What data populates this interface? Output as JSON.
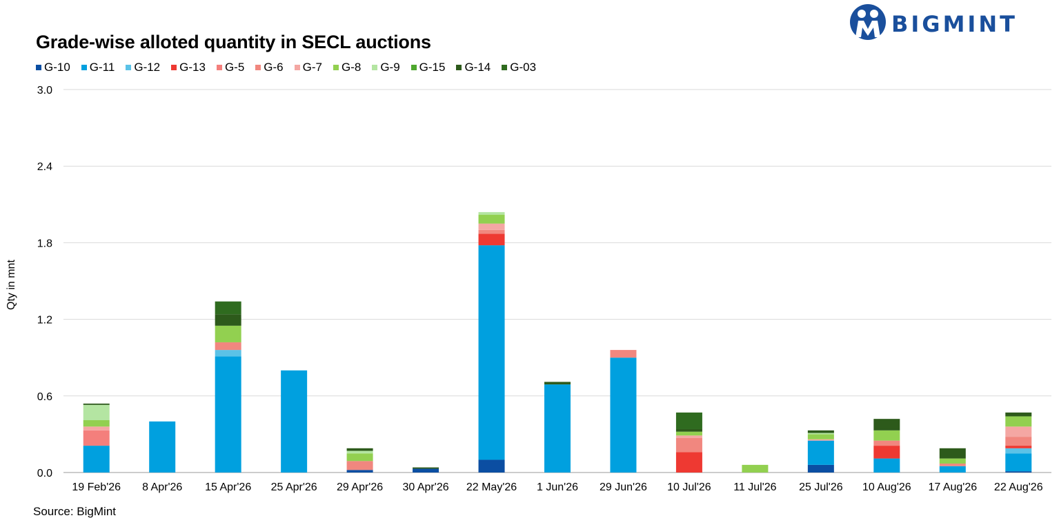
{
  "brand": {
    "name": "BIGMINT",
    "color": "#1a4f9c"
  },
  "source": "Source: BigMint",
  "chart_data": {
    "type": "bar",
    "stacked": true,
    "title": "Grade-wise alloted quantity in SECL auctions",
    "xlabel": "",
    "ylabel": "Qty in mnt",
    "ylim": [
      0,
      3.0
    ],
    "yticks": [
      "0.0",
      "0.6",
      "1.2",
      "1.8",
      "2.4",
      "3.0"
    ],
    "grid": true,
    "legend_position": "top-left",
    "categories": [
      "19 Feb'26",
      "8 Apr'26",
      "15 Apr'26",
      "25 Apr'26",
      "29 Apr'26",
      "30 Apr'26",
      "22 May'26",
      "1 Jun'26",
      "29 Jun'26",
      "10 Jul'26",
      "11 Jul'26",
      "25 Jul'26",
      "10 Aug'26",
      "17 Aug'26",
      "22 Aug'26"
    ],
    "series": [
      {
        "name": "G-10",
        "color": "#0b4ea2",
        "values": [
          0,
          0,
          0,
          0,
          0.02,
          0.03,
          0.1,
          0,
          0,
          0,
          0,
          0.06,
          0,
          0,
          0.01
        ]
      },
      {
        "name": "G-11",
        "color": "#00a0df",
        "values": [
          0.21,
          0.4,
          0.91,
          0.8,
          0,
          0,
          1.68,
          0.69,
          0.9,
          0,
          0,
          0.19,
          0.11,
          0.05,
          0.14
        ]
      },
      {
        "name": "G-12",
        "color": "#5bc2e7",
        "values": [
          0,
          0,
          0.05,
          0,
          0,
          0,
          0,
          0,
          0,
          0,
          0,
          0,
          0,
          0,
          0.04
        ]
      },
      {
        "name": "G-13",
        "color": "#ee3932",
        "values": [
          0,
          0,
          0,
          0,
          0,
          0,
          0.09,
          0,
          0,
          0.16,
          0,
          0,
          0.1,
          0,
          0.02
        ]
      },
      {
        "name": "G-5",
        "color": "#f47f7c",
        "values": [
          0.12,
          0,
          0,
          0,
          0,
          0,
          0,
          0,
          0,
          0,
          0,
          0,
          0,
          0,
          0
        ]
      },
      {
        "name": "G-6",
        "color": "#f1877f",
        "values": [
          0,
          0,
          0.06,
          0,
          0.07,
          0,
          0.03,
          0,
          0.06,
          0.11,
          0,
          0,
          0.04,
          0.02,
          0.07
        ]
      },
      {
        "name": "G-7",
        "color": "#f4a7a3",
        "values": [
          0.03,
          0,
          0,
          0,
          0,
          0,
          0.05,
          0,
          0,
          0.02,
          0,
          0.01,
          0,
          0,
          0.08
        ]
      },
      {
        "name": "G-8",
        "color": "#92d050",
        "values": [
          0.05,
          0,
          0.13,
          0,
          0.06,
          0,
          0.07,
          0,
          0,
          0.03,
          0.06,
          0.04,
          0.08,
          0.04,
          0.08
        ]
      },
      {
        "name": "G-9",
        "color": "#b4e5a2",
        "values": [
          0.12,
          0,
          0,
          0,
          0.02,
          0,
          0.02,
          0,
          0,
          0,
          0,
          0.01,
          0,
          0,
          0
        ]
      },
      {
        "name": "G-15",
        "color": "#4ea72e",
        "values": [
          0,
          0,
          0,
          0,
          0,
          0,
          0,
          0,
          0,
          0,
          0,
          0,
          0,
          0,
          0
        ]
      },
      {
        "name": "G-14",
        "color": "#2d5a1b",
        "values": [
          0.01,
          0,
          0.09,
          0,
          0.02,
          0.01,
          0,
          0.02,
          0,
          0.02,
          0,
          0.02,
          0.09,
          0.08,
          0.03
        ]
      },
      {
        "name": "G-03",
        "color": "#2f6b1f",
        "values": [
          0,
          0,
          0.1,
          0,
          0,
          0,
          0,
          0,
          0,
          0.13,
          0,
          0,
          0,
          0,
          0
        ]
      }
    ]
  }
}
